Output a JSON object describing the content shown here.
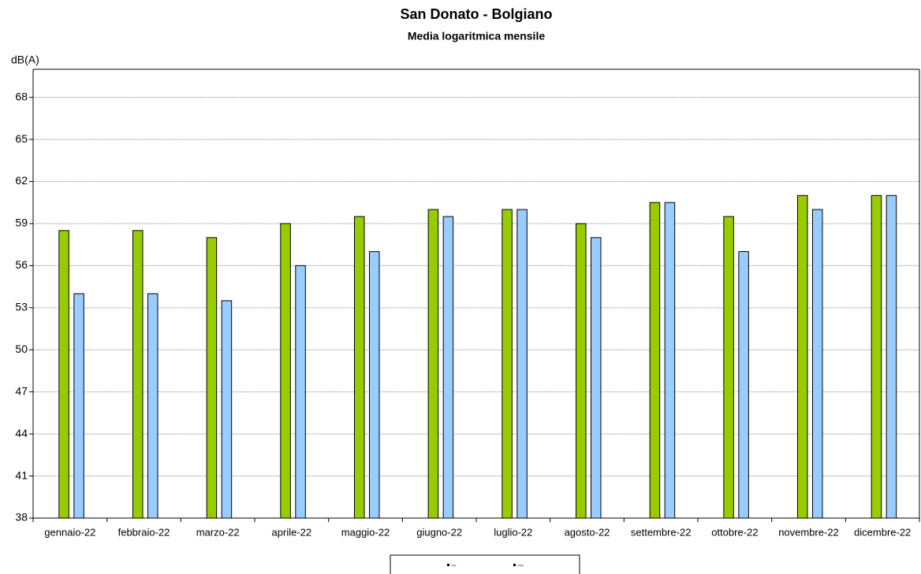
{
  "chart_data": {
    "type": "bar",
    "title": "San Donato - Bolgiano",
    "subtitle": "Media logaritmica mensile",
    "y_label": "dB(A)",
    "categories": [
      "gennaio-22",
      "febbraio-22",
      "marzo-22",
      "aprile-22",
      "maggio-22",
      "giugno-22",
      "luglio-22",
      "agosto-22",
      "settembre-22",
      "ottobre-22",
      "novembre-22",
      "dicembre-22"
    ],
    "series": [
      {
        "name": "Lday",
        "color": "#99cc00",
        "values": [
          58.5,
          58.5,
          58,
          59,
          59.5,
          60,
          60,
          59,
          60.5,
          59.5,
          61,
          61
        ]
      },
      {
        "name": "Lnight",
        "color": "#99ccff",
        "values": [
          54,
          54,
          53.5,
          56,
          57,
          59.5,
          60,
          58,
          60.5,
          57,
          60,
          61
        ]
      }
    ],
    "ylim": [
      38,
      70
    ],
    "yticks": [
      38,
      41,
      44,
      47,
      50,
      53,
      56,
      59,
      62,
      65,
      68
    ],
    "grid": true
  }
}
